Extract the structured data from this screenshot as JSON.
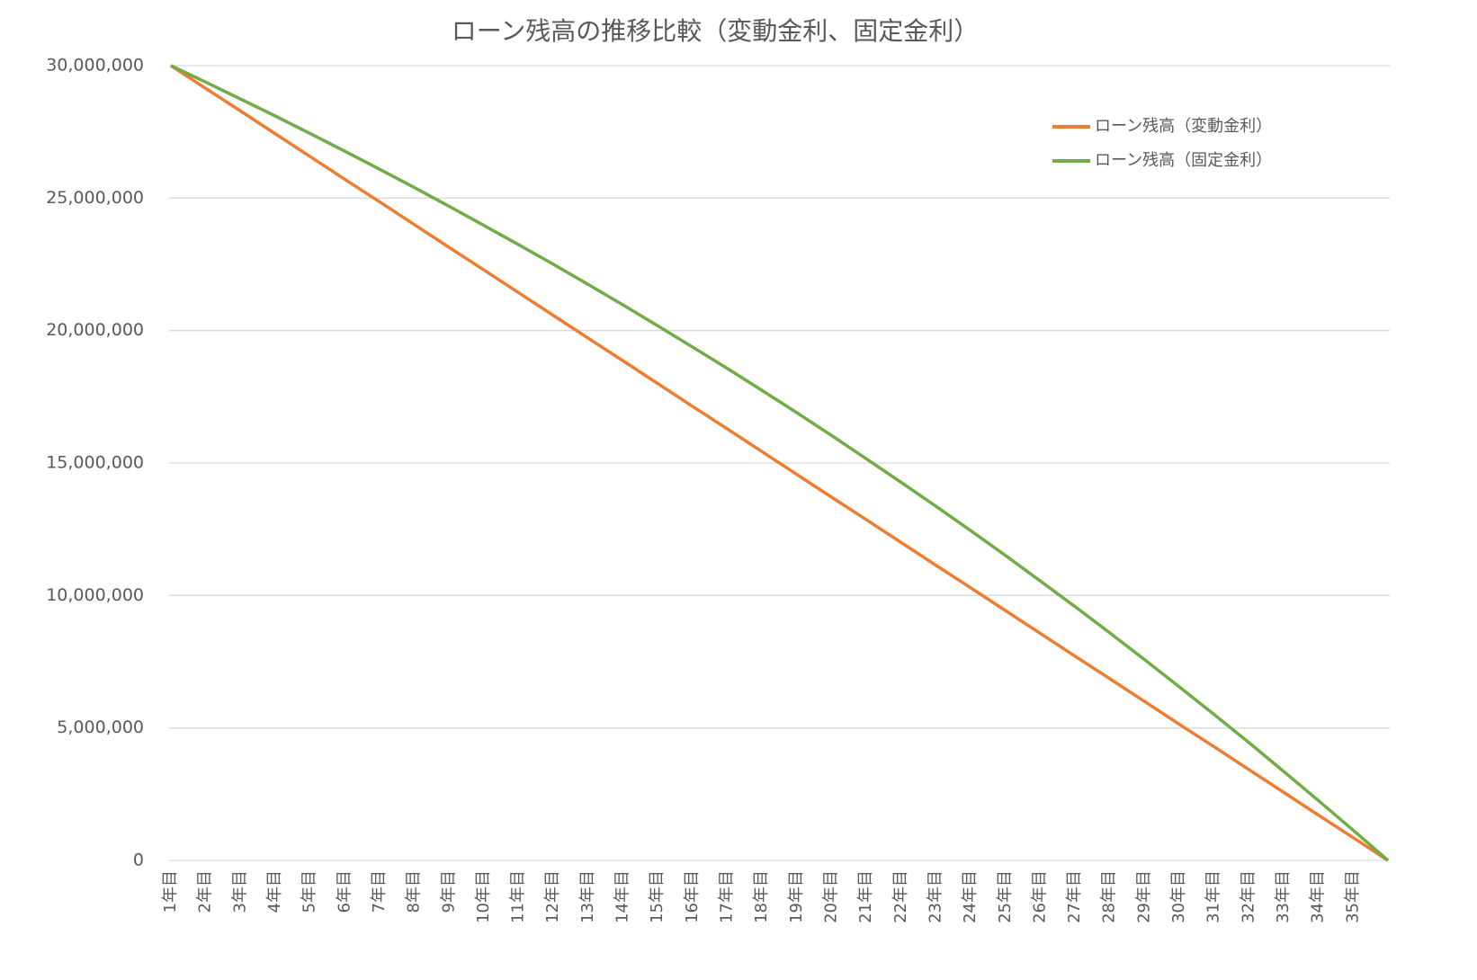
{
  "chart_data": {
    "type": "line",
    "title": "ローン残高の推移比較（変動金利、固定金利）",
    "categories": [
      "1年目",
      "2年目",
      "3年目",
      "4年目",
      "5年目",
      "6年目",
      "7年目",
      "8年目",
      "9年目",
      "10年目",
      "11年目",
      "12年目",
      "13年目",
      "14年目",
      "15年目",
      "16年目",
      "17年目",
      "18年目",
      "19年目",
      "20年目",
      "21年目",
      "22年目",
      "23年目",
      "24年目",
      "25年目",
      "26年目",
      "27年目",
      "28年目",
      "29年目",
      "30年目",
      "31年目",
      "32年目",
      "33年目",
      "34年目",
      "35年目",
      null
    ],
    "series": [
      {
        "name": "ローン残高（変動金利）",
        "color": "#ED7D31",
        "values": [
          30000000,
          29140000,
          28290000,
          27430000,
          26570000,
          25710000,
          24860000,
          24000000,
          23140000,
          22290000,
          21430000,
          20570000,
          19710000,
          18860000,
          18000000,
          17140000,
          16290000,
          15430000,
          14570000,
          13710000,
          12860000,
          12000000,
          11140000,
          10290000,
          9430000,
          8570000,
          7710000,
          6860000,
          6000000,
          5140000,
          4290000,
          3430000,
          2570000,
          1710000,
          860000,
          0
        ]
      },
      {
        "name": "ローン残高（固定金利）",
        "color": "#70AD47",
        "values": [
          30000000,
          29380000,
          28740000,
          28100000,
          27440000,
          26770000,
          26090000,
          25400000,
          24690000,
          23970000,
          23240000,
          22500000,
          21740000,
          20970000,
          20180000,
          19380000,
          18570000,
          17740000,
          16900000,
          16040000,
          15160000,
          14270000,
          13370000,
          12450000,
          11510000,
          10550000,
          9580000,
          8590000,
          7580000,
          6550000,
          5510000,
          4450000,
          3360000,
          2260000,
          1140000,
          0
        ]
      }
    ],
    "ylim": [
      0,
      30000000
    ],
    "yticks": [
      0,
      {
        "value": 5000000,
        "label": "5,000,000"
      },
      {
        "value": 10000000,
        "label": "10,000,000"
      },
      {
        "value": 15000000,
        "label": "15,000,000"
      },
      {
        "value": 20000000,
        "label": "20,000,000"
      },
      {
        "value": 25000000,
        "label": "25,000,000"
      },
      {
        "value": 30000000,
        "label": "30,000,000"
      }
    ],
    "grid": true,
    "legend": "top-right"
  }
}
